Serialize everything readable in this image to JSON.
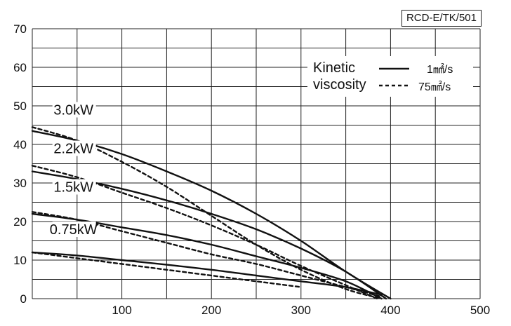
{
  "chart_data": {
    "type": "line",
    "title": "RCD-E/TK/501",
    "xlabel": "",
    "ylabel": "",
    "xlim": [
      0,
      500
    ],
    "ylim": [
      0,
      70
    ],
    "x_ticks": [
      "100",
      "200",
      "300",
      "400",
      "500"
    ],
    "y_ticks": [
      "0",
      "10",
      "20",
      "30",
      "40",
      "50",
      "60",
      "70"
    ],
    "grid": true,
    "legend": {
      "title_line1": "Kinetic",
      "title_line2": "viscosity",
      "entries": [
        {
          "label": "1㎟/s",
          "style": "solid"
        },
        {
          "label": "75㎟/s",
          "style": "dashed"
        }
      ],
      "placement": "top-right"
    },
    "power_labels": [
      "3.0kW",
      "2.2kW",
      "1.5kW",
      "0.75kW"
    ],
    "series": [
      {
        "name": "3.0kW",
        "style": "solid",
        "x": [
          0,
          50,
          100,
          150,
          200,
          250,
          300,
          350,
          400
        ],
        "y": [
          43.5,
          41,
          37.5,
          33,
          28,
          22,
          15,
          7,
          0
        ]
      },
      {
        "name": "3.0kW",
        "style": "dashed",
        "x": [
          0,
          50,
          100,
          150,
          200,
          250,
          300,
          350,
          390
        ],
        "y": [
          44.5,
          41,
          35.5,
          29,
          21.5,
          14,
          7.5,
          2.5,
          0
        ]
      },
      {
        "name": "2.2kW",
        "style": "solid",
        "x": [
          0,
          50,
          100,
          150,
          200,
          250,
          300,
          350,
          395
        ],
        "y": [
          33,
          31,
          28.5,
          25.5,
          22,
          18,
          13,
          7,
          0
        ]
      },
      {
        "name": "2.2kW",
        "style": "dashed",
        "x": [
          0,
          50,
          100,
          150,
          200,
          250,
          300,
          350,
          385
        ],
        "y": [
          34.5,
          31.5,
          27.5,
          23.5,
          19,
          14,
          8.5,
          3.5,
          0
        ]
      },
      {
        "name": "1.5kW",
        "style": "solid",
        "x": [
          0,
          50,
          100,
          150,
          200,
          250,
          300,
          350,
          390
        ],
        "y": [
          22,
          20.5,
          18.5,
          16.5,
          14,
          11,
          8,
          4.5,
          0
        ]
      },
      {
        "name": "1.5kW",
        "style": "dashed",
        "x": [
          0,
          50,
          100,
          150,
          200,
          250,
          300,
          350,
          390
        ],
        "y": [
          22.5,
          20.5,
          17.5,
          14.5,
          11.5,
          9,
          6,
          3,
          0.5
        ]
      },
      {
        "name": "0.75kW",
        "style": "solid",
        "x": [
          0,
          50,
          100,
          150,
          200,
          250,
          300,
          350,
          390
        ],
        "y": [
          12,
          11.2,
          10,
          8.8,
          7.5,
          6,
          4.5,
          3,
          1
        ]
      },
      {
        "name": "0.75kW",
        "style": "dashed",
        "x": [
          0,
          50,
          100,
          150,
          200,
          250,
          300
        ],
        "y": [
          12,
          10.5,
          9,
          7.5,
          6,
          4.5,
          3
        ]
      }
    ]
  }
}
